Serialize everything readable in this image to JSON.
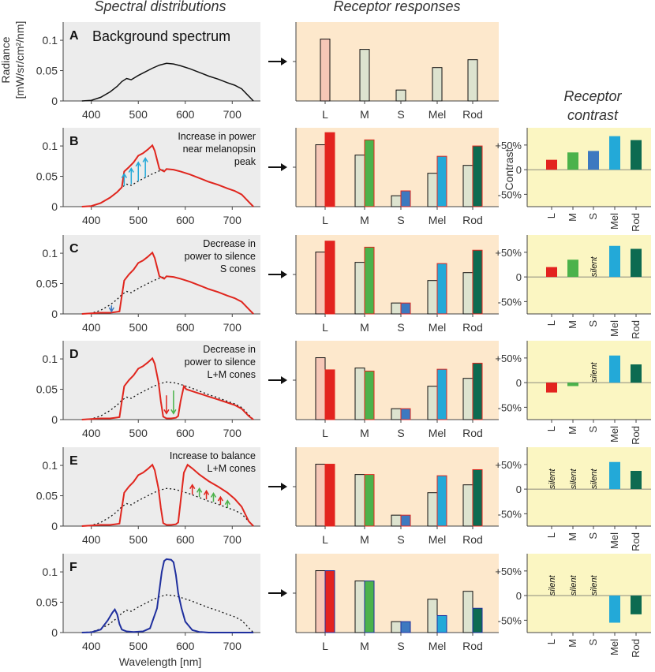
{
  "titles": {
    "spectral": "Spectral distributions",
    "receptor_responses": "Receptor responses",
    "receptor_contrast_line1": "Receptor",
    "receptor_contrast_line2": "contrast"
  },
  "axes": {
    "spectrum_ylabel_line1": "Radiance",
    "spectrum_ylabel_line2": "[mW/sr/cm²/nm]",
    "spectrum_xlabel": "Wavelength [nm]",
    "contrast_ylabel": "Contrast",
    "silent_label": "silent",
    "arrow_glyph": "→"
  },
  "colors": {
    "spectrum_bg": "#ececec",
    "response_bg": "#fde8cc",
    "contrast_bg": "#fbf6c2",
    "red_curve": "#e0261e",
    "blue_curve": "#1f2f9e",
    "bg_L": "#f6c7b7",
    "bg_other": "#dde3cf",
    "L": "#e3231f",
    "M": "#4bb24b",
    "S": "#3d79c0",
    "Mel": "#23a9d8",
    "Rod": "#0d6b51"
  },
  "chart_data": {
    "type": "multi-panel",
    "receptors": [
      "L",
      "M",
      "S",
      "Mel",
      "Rod"
    ],
    "spectrum_axes": {
      "xlim": [
        340,
        760
      ],
      "ylim": [
        0,
        0.13
      ],
      "xticks": [
        400,
        500,
        600,
        700
      ],
      "yticks": [
        0,
        0.05,
        0.1
      ],
      "ytick_labels": [
        "0",
        "0.05",
        "0.1"
      ]
    },
    "contrast_axes": {
      "ylim": [
        -75,
        85
      ],
      "yticks": [
        50,
        0,
        -50
      ],
      "ytick_labels": [
        "+50%",
        "0",
        "-50%"
      ]
    },
    "background_spectrum": {
      "wavelength": [
        380,
        400,
        420,
        440,
        455,
        465,
        475,
        485,
        500,
        515,
        530,
        545,
        560,
        575,
        590,
        610,
        630,
        650,
        670,
        690,
        705,
        720,
        735,
        745
      ],
      "radiance": [
        0,
        0.001,
        0.006,
        0.015,
        0.024,
        0.032,
        0.037,
        0.035,
        0.042,
        0.048,
        0.054,
        0.059,
        0.062,
        0.061,
        0.058,
        0.053,
        0.047,
        0.041,
        0.036,
        0.03,
        0.026,
        0.02,
        0.008,
        0
      ]
    },
    "background_responses": [
      0.102,
      0.085,
      0.018,
      0.055,
      0.068
    ],
    "panels": [
      {
        "id": "A",
        "label_lines": [
          "Background spectrum"
        ],
        "spectrum_color": "#000000",
        "modified_spectrum": null,
        "modified_responses": null,
        "contrast": null,
        "silent": []
      },
      {
        "id": "B",
        "label_lines": [
          "Increase in power",
          "near melanopsin",
          "peak"
        ],
        "spectrum_color": "#e0261e",
        "modified_spectrum": {
          "wavelength": [
            380,
            400,
            420,
            440,
            455,
            465,
            470,
            480,
            490,
            500,
            510,
            520,
            530,
            535,
            545,
            555,
            560,
            575,
            590,
            610,
            630,
            650,
            670,
            690,
            705,
            720,
            735,
            745
          ],
          "radiance": [
            0,
            0.001,
            0.006,
            0.015,
            0.024,
            0.032,
            0.058,
            0.065,
            0.073,
            0.084,
            0.088,
            0.094,
            0.101,
            0.092,
            0.062,
            0.058,
            0.062,
            0.061,
            0.058,
            0.053,
            0.047,
            0.041,
            0.036,
            0.03,
            0.026,
            0.02,
            0.008,
            0
          ]
        },
        "modified_responses": [
          0.122,
          0.11,
          0.026,
          0.083,
          0.1
        ],
        "contrast": [
          20,
          35,
          38,
          68,
          60
        ],
        "silent": []
      },
      {
        "id": "C",
        "label_lines": [
          "Decrease in",
          "power to silence",
          "S cones"
        ],
        "spectrum_color": "#e0261e",
        "modified_spectrum": {
          "wavelength": [
            380,
            400,
            420,
            440,
            450,
            460,
            465,
            470,
            480,
            490,
            500,
            510,
            520,
            530,
            535,
            545,
            555,
            560,
            575,
            590,
            610,
            630,
            650,
            670,
            690,
            705,
            720,
            735,
            745
          ],
          "radiance": [
            0,
            0.001,
            0.002,
            0.002,
            0.003,
            0.004,
            0.03,
            0.055,
            0.065,
            0.073,
            0.084,
            0.088,
            0.094,
            0.101,
            0.092,
            0.062,
            0.058,
            0.062,
            0.061,
            0.058,
            0.053,
            0.047,
            0.041,
            0.036,
            0.03,
            0.026,
            0.02,
            0.008,
            0
          ]
        },
        "modified_responses": [
          0.12,
          0.11,
          0.018,
          0.083,
          0.105
        ],
        "contrast": [
          20,
          35,
          0,
          63,
          57
        ],
        "silent": [
          "S"
        ]
      },
      {
        "id": "D",
        "label_lines": [
          "Decrease in",
          "power to silence",
          "L+M cones"
        ],
        "spectrum_color": "#e0261e",
        "modified_spectrum": {
          "wavelength": [
            380,
            400,
            420,
            440,
            450,
            460,
            465,
            470,
            480,
            490,
            500,
            510,
            520,
            530,
            535,
            543,
            548,
            553,
            560,
            570,
            580,
            585,
            590,
            597,
            602,
            610,
            630,
            650,
            670,
            690,
            705,
            720,
            735,
            745
          ],
          "radiance": [
            0,
            0.001,
            0.002,
            0.002,
            0.003,
            0.004,
            0.03,
            0.055,
            0.065,
            0.073,
            0.084,
            0.088,
            0.094,
            0.101,
            0.092,
            0.062,
            0.03,
            0.005,
            0.002,
            0.002,
            0.003,
            0.006,
            0.03,
            0.055,
            0.05,
            0.048,
            0.043,
            0.038,
            0.033,
            0.028,
            0.024,
            0.018,
            0.006,
            0
          ]
        },
        "modified_responses": [
          0.082,
          0.08,
          0.018,
          0.083,
          0.093
        ],
        "contrast": [
          -20,
          -7,
          0,
          55,
          37
        ],
        "silent": [
          "S"
        ]
      },
      {
        "id": "E",
        "label_lines": [
          "Increase  to balance",
          "L+M cones"
        ],
        "spectrum_color": "#e0261e",
        "modified_spectrum": {
          "wavelength": [
            380,
            400,
            420,
            440,
            450,
            460,
            465,
            470,
            480,
            490,
            500,
            510,
            520,
            530,
            535,
            543,
            548,
            553,
            560,
            570,
            580,
            585,
            590,
            597,
            605,
            615,
            630,
            650,
            670,
            690,
            705,
            720,
            735,
            745
          ],
          "radiance": [
            0,
            0.001,
            0.002,
            0.002,
            0.003,
            0.004,
            0.03,
            0.055,
            0.065,
            0.073,
            0.084,
            0.088,
            0.094,
            0.101,
            0.092,
            0.062,
            0.03,
            0.005,
            0.002,
            0.002,
            0.003,
            0.006,
            0.04,
            0.088,
            0.101,
            0.095,
            0.085,
            0.074,
            0.065,
            0.055,
            0.045,
            0.032,
            0.008,
            0
          ]
        },
        "modified_responses": [
          0.102,
          0.085,
          0.018,
          0.083,
          0.093
        ],
        "contrast": [
          0,
          0,
          0,
          55,
          37
        ],
        "silent": [
          "L",
          "M",
          "S"
        ]
      },
      {
        "id": "F",
        "label_lines": [],
        "spectrum_color": "#1f2f9e",
        "modified_spectrum": {
          "wavelength": [
            380,
            400,
            420,
            435,
            445,
            450,
            455,
            460,
            465,
            475,
            490,
            510,
            525,
            540,
            550,
            555,
            560,
            570,
            575,
            580,
            585,
            592,
            600,
            615,
            630,
            650,
            670,
            690,
            705,
            720,
            735,
            745
          ],
          "radiance": [
            0,
            0.0005,
            0.005,
            0.02,
            0.033,
            0.038,
            0.03,
            0.014,
            0.005,
            0.002,
            0.001,
            0.002,
            0.007,
            0.04,
            0.1,
            0.118,
            0.121,
            0.12,
            0.116,
            0.095,
            0.065,
            0.04,
            0.018,
            0.004,
            0.001,
            0,
            0,
            0,
            0,
            0,
            0,
            0
          ]
        },
        "modified_responses": [
          0.102,
          0.085,
          0.018,
          0.028,
          0.04
        ],
        "contrast": [
          0,
          0,
          0,
          -55,
          -38
        ],
        "silent": [
          "L",
          "M",
          "S"
        ]
      }
    ]
  }
}
